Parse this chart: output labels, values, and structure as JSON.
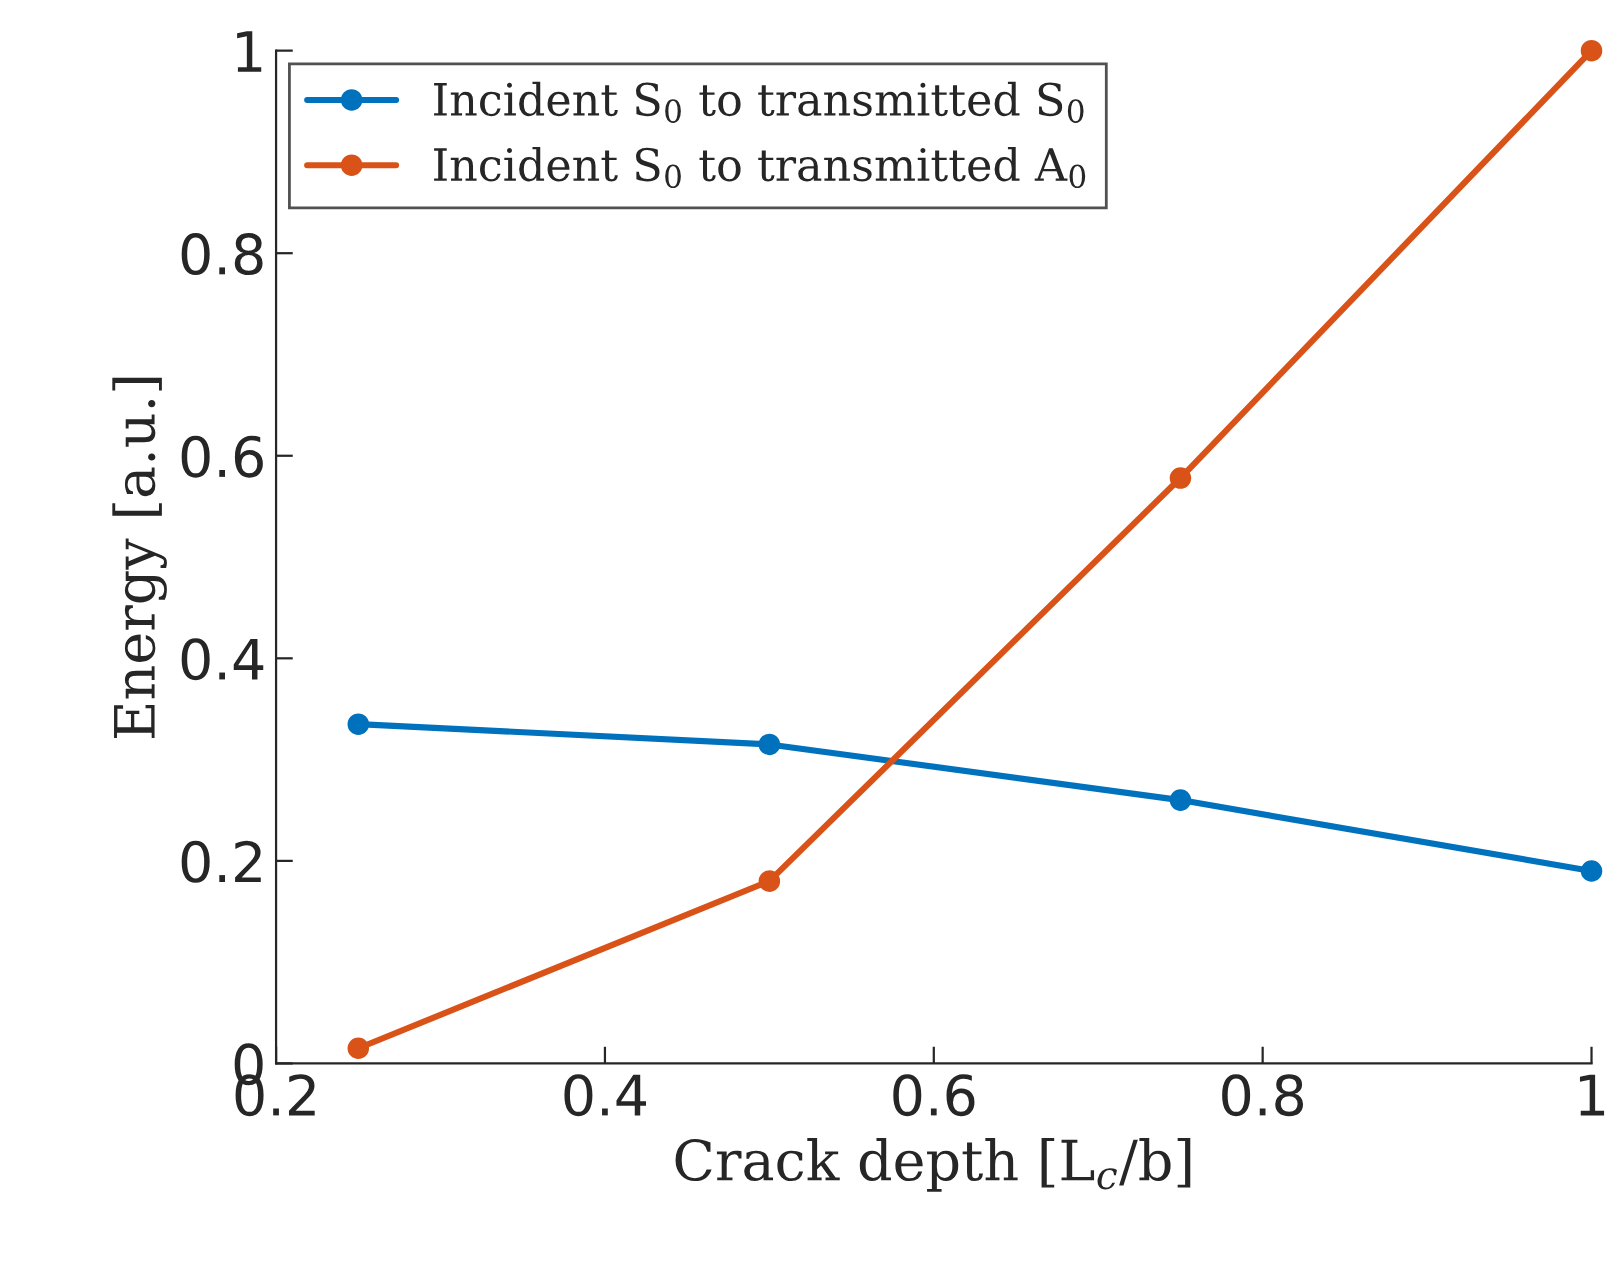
{
  "chart_data": {
    "type": "line",
    "xlabel": "Crack depth [L$_{c}$/b]",
    "ylabel": "Energy [a.u.]",
    "x": [
      0.25,
      0.5,
      0.75,
      1.0
    ],
    "series": [
      {
        "name": "Incident S$_{0}$ to transmitted S$_{0}$",
        "color": "#0072bd",
        "values": [
          0.335,
          0.315,
          0.26,
          0.19
        ]
      },
      {
        "name": "Incident S$_{0}$ to transmitted A$_{0}$",
        "color": "#d95319",
        "values": [
          0.015,
          0.18,
          0.578,
          1.0
        ]
      }
    ],
    "xlim": [
      0.2,
      1
    ],
    "xticks": [
      0.2,
      0.4,
      0.6,
      0.8,
      1
    ],
    "ylim": [
      0,
      1
    ],
    "yticks": [
      0,
      0.2,
      0.4,
      0.6,
      0.8,
      1
    ],
    "grid": false,
    "legend": "top left",
    "marker": "circle",
    "line_style": "solid"
  }
}
